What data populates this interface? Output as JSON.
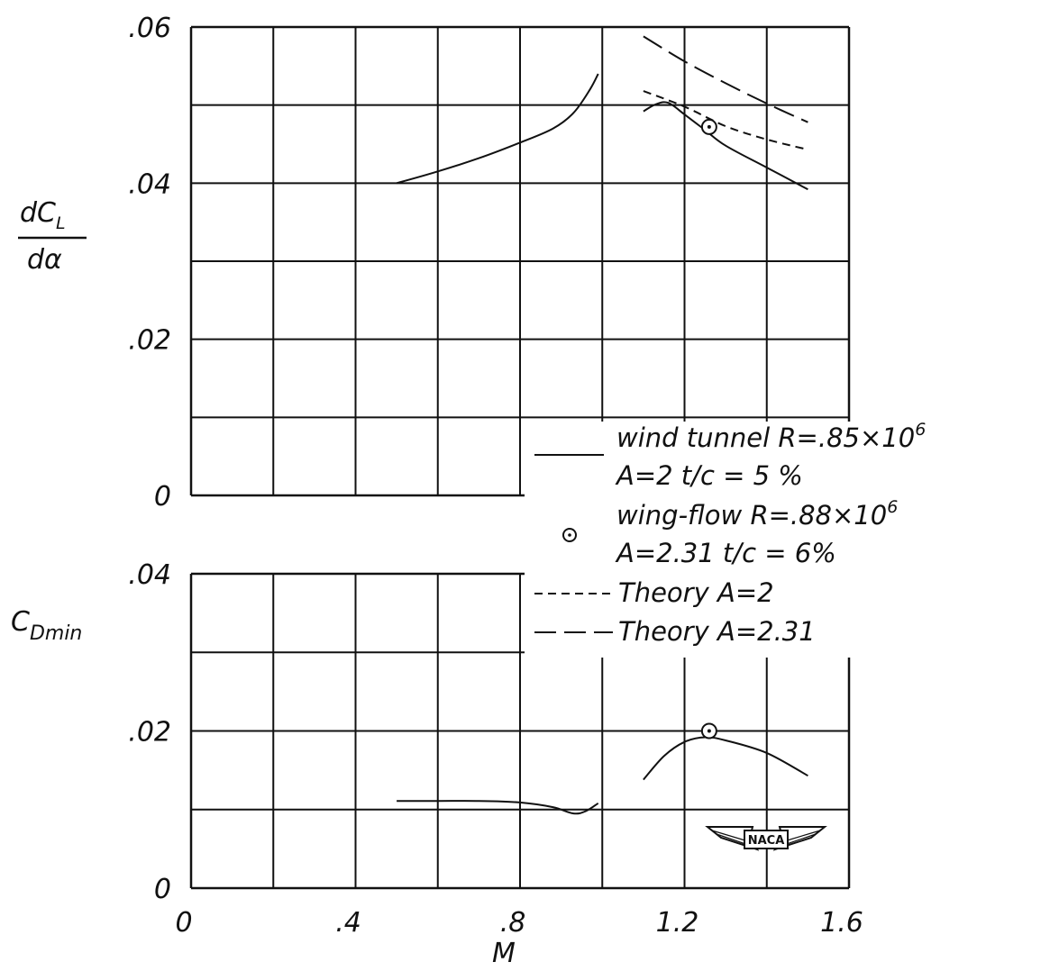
{
  "chart_data": [
    {
      "type": "line",
      "ylabel_num": "dC",
      "ylabel_sub": "L",
      "ylabel_den": "dα",
      "xlim": [
        0,
        1.6
      ],
      "ylim": [
        0,
        0.06
      ],
      "y_ticks": [
        {
          "value": 0,
          "label": "0"
        },
        {
          "value": 0.02,
          "label": ".02"
        },
        {
          "value": 0.04,
          "label": ".04"
        },
        {
          "value": 0.06,
          "label": ".06"
        }
      ],
      "grid": true,
      "series": [
        {
          "name": "wind tunnel",
          "style": "solid",
          "points": [
            [
              0.5,
              0.04
            ],
            [
              0.6,
              0.0415
            ],
            [
              0.7,
              0.0432
            ],
            [
              0.8,
              0.0452
            ],
            [
              0.88,
              0.047
            ],
            [
              0.93,
              0.049
            ],
            [
              0.97,
              0.052
            ],
            [
              0.99,
              0.054
            ]
          ]
        },
        {
          "name": "wind tunnel",
          "style": "solid",
          "points": [
            [
              1.1,
              0.0492
            ],
            [
              1.13,
              0.0501
            ],
            [
              1.16,
              0.0503
            ],
            [
              1.2,
              0.0488
            ],
            [
              1.25,
              0.0468
            ],
            [
              1.3,
              0.0448
            ],
            [
              1.4,
              0.042
            ],
            [
              1.5,
              0.0392
            ]
          ]
        },
        {
          "name": "Theory A=2",
          "style": "dashed",
          "points": [
            [
              1.1,
              0.0518
            ],
            [
              1.2,
              0.0498
            ],
            [
              1.3,
              0.0473
            ],
            [
              1.4,
              0.0456
            ],
            [
              1.5,
              0.0443
            ]
          ]
        },
        {
          "name": "Theory A=2.31",
          "style": "longdash",
          "points": [
            [
              1.1,
              0.0588
            ],
            [
              1.2,
              0.0556
            ],
            [
              1.3,
              0.0528
            ],
            [
              1.4,
              0.0502
            ],
            [
              1.5,
              0.0478
            ]
          ]
        },
        {
          "name": "wing-flow",
          "style": "marker",
          "points": [
            [
              1.26,
              0.0472
            ]
          ]
        }
      ]
    },
    {
      "type": "line",
      "ylabel_main": "C",
      "ylabel_sub": "Dmin",
      "xlabel": "M",
      "xlim": [
        0,
        1.6
      ],
      "ylim": [
        0,
        0.04
      ],
      "x_ticks": [
        {
          "value": 0,
          "label": "0"
        },
        {
          "value": 0.4,
          "label": ".4"
        },
        {
          "value": 0.8,
          "label": ".8"
        },
        {
          "value": 1.2,
          "label": "1.2"
        },
        {
          "value": 1.6,
          "label": "1.6"
        }
      ],
      "y_ticks": [
        {
          "value": 0,
          "label": "0"
        },
        {
          "value": 0.02,
          "label": ".02"
        },
        {
          "value": 0.04,
          "label": ".04"
        }
      ],
      "grid": true,
      "series": [
        {
          "name": "wind tunnel",
          "style": "solid",
          "points": [
            [
              0.5,
              0.0111
            ],
            [
              0.6,
              0.0111
            ],
            [
              0.7,
              0.0111
            ],
            [
              0.8,
              0.0109
            ],
            [
              0.88,
              0.0103
            ],
            [
              0.93,
              0.0095
            ],
            [
              0.96,
              0.0098
            ],
            [
              0.99,
              0.0108
            ]
          ]
        },
        {
          "name": "wind tunnel",
          "style": "solid",
          "points": [
            [
              1.1,
              0.0138
            ],
            [
              1.15,
              0.0168
            ],
            [
              1.2,
              0.0186
            ],
            [
              1.25,
              0.0192
            ],
            [
              1.3,
              0.0188
            ],
            [
              1.4,
              0.0172
            ],
            [
              1.5,
              0.0143
            ]
          ]
        },
        {
          "name": "wing-flow",
          "style": "marker",
          "points": [
            [
              1.26,
              0.02
            ]
          ]
        }
      ]
    }
  ],
  "legend": {
    "entries": [
      {
        "style": "solid",
        "line1": "wind tunnel   R=.85×10",
        "line1_sup": "6",
        "line2": "A=2      t/c = 5 %"
      },
      {
        "style": "marker",
        "line1": "wing-flow    R=.88×10",
        "line1_sup": "6",
        "line2": "A=2.31   t/c = 6%"
      },
      {
        "style": "dashed",
        "line1": "Theory    A=2"
      },
      {
        "style": "longdash",
        "line1": "Theory    A=2.31"
      }
    ]
  },
  "logo": {
    "text": "NACA"
  }
}
